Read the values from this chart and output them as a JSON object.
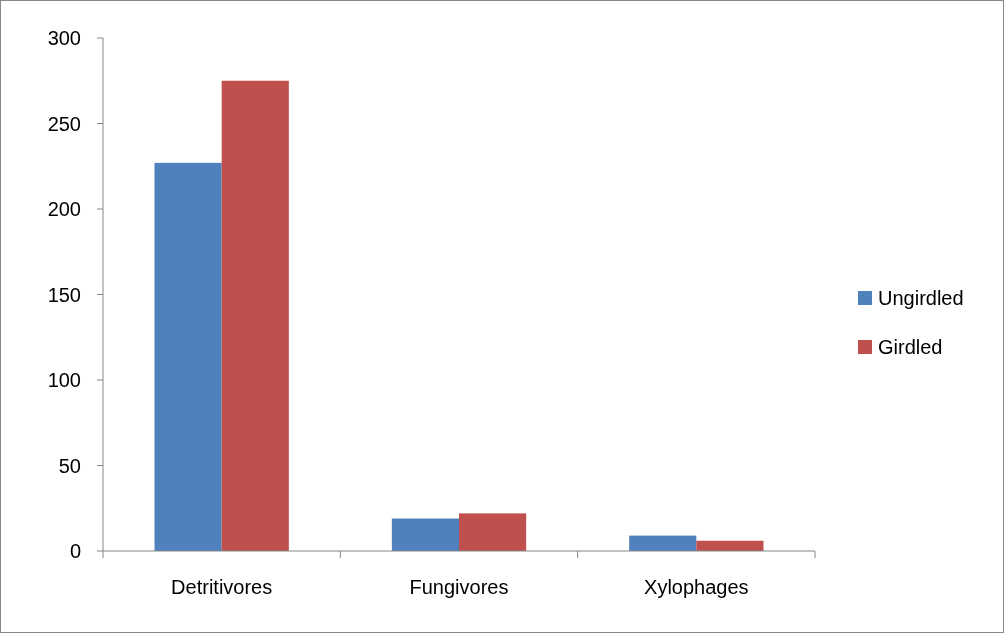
{
  "chart_data": {
    "type": "bar",
    "categories": [
      "Detritivores",
      "Fungivores",
      "Xylophages"
    ],
    "series": [
      {
        "name": "Ungirdled",
        "color": "#4f81bd",
        "values": [
          227,
          19,
          9
        ]
      },
      {
        "name": "Girdled",
        "color": "#c0504d",
        "values": [
          275,
          22,
          6
        ]
      }
    ],
    "ylim": [
      0,
      300
    ],
    "yticks": [
      0,
      50,
      100,
      150,
      200,
      250,
      300
    ],
    "grid": false,
    "legend": "right"
  }
}
